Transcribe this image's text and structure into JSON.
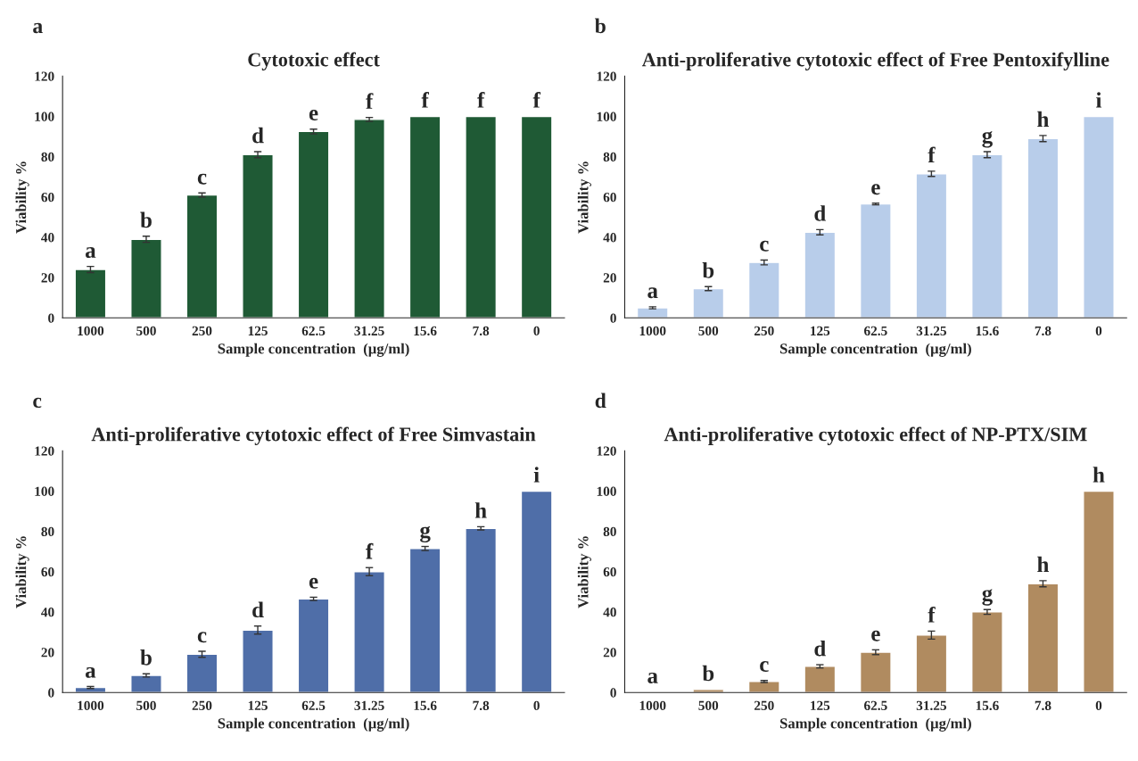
{
  "chart_data": [
    {
      "type": "bar",
      "title": "Cytotoxic effect",
      "xlabel": "Sample concentration  (µg/ml)",
      "ylabel": "Viability %",
      "categories": [
        "1000",
        "500",
        "250",
        "125",
        "62.5",
        "31.25",
        "15.6",
        "7.8",
        "0"
      ],
      "values": [
        24,
        39,
        61,
        81,
        92.5,
        98.5,
        100,
        100,
        100
      ],
      "errors": [
        1.5,
        1.5,
        1,
        1.5,
        1.2,
        1,
        null,
        null,
        null
      ],
      "value_labels": [
        "a",
        "b",
        "c",
        "d",
        "e",
        "f",
        "f",
        "f",
        "f"
      ],
      "color": "#1f5a35",
      "ylim": [
        0,
        120
      ],
      "yticks": [
        0,
        20,
        40,
        60,
        80,
        100,
        120
      ],
      "annotations": [
        "a"
      ]
    },
    {
      "type": "bar",
      "title": "Anti-proliferative cytotoxic effect of Free Pentoxifylline",
      "xlabel": "Sample concentration  (µg/ml)",
      "ylabel": "Viability %",
      "categories": [
        "1000",
        "500",
        "250",
        "125",
        "62.5",
        "31.25",
        "15.6",
        "7.8",
        "0"
      ],
      "values": [
        5,
        14.5,
        27.5,
        42.5,
        56.5,
        71.5,
        81,
        89,
        100
      ],
      "errors": [
        0.5,
        1,
        1.2,
        1.3,
        0.4,
        1.3,
        1.5,
        1.5,
        null
      ],
      "value_labels": [
        "a",
        "b",
        "c",
        "d",
        "e",
        "f",
        "g",
        "h",
        "i"
      ],
      "color": "#b8cdea",
      "ylim": [
        0,
        120
      ],
      "yticks": [
        0,
        20,
        40,
        60,
        80,
        100,
        120
      ],
      "annotations": [
        "b"
      ]
    },
    {
      "type": "bar",
      "title": "Anti-proliferative cytotoxic effect of Free Simvastain",
      "xlabel": "Sample concentration  (µg/ml)",
      "ylabel": "Viability %",
      "categories": [
        "1000",
        "500",
        "250",
        "125",
        "62.5",
        "31.25",
        "15.6",
        "7.8",
        "0"
      ],
      "values": [
        2.5,
        8.5,
        19,
        31,
        46.5,
        60,
        71.5,
        81.5,
        100
      ],
      "errors": [
        0.5,
        0.8,
        1.5,
        2,
        0.8,
        2,
        1,
        0.8,
        null
      ],
      "value_labels": [
        "a",
        "b",
        "c",
        "d",
        "e",
        "f",
        "g",
        "h",
        "i"
      ],
      "color": "#4f6ea8",
      "ylim": [
        0,
        120
      ],
      "yticks": [
        0,
        20,
        40,
        60,
        80,
        100,
        120
      ],
      "annotations": [
        "c"
      ]
    },
    {
      "type": "bar",
      "title": "Anti-proliferative cytotoxic effect of NP-PTX/SIM",
      "xlabel": "Sample concentration  (µg/ml)",
      "ylabel": "Viability %",
      "categories": [
        "1000",
        "500",
        "250",
        "125",
        "62.5",
        "31.25",
        "15.6",
        "7.8",
        "0"
      ],
      "values": [
        0.3,
        1.5,
        5.5,
        13,
        20,
        28.5,
        40,
        54,
        100
      ],
      "errors": [
        null,
        null,
        0.5,
        0.8,
        1.2,
        2,
        1.2,
        1.5,
        null
      ],
      "value_labels": [
        "a",
        "b",
        "c",
        "d",
        "e",
        "f",
        "g",
        "h",
        "h"
      ],
      "color": "#b08b60",
      "ylim": [
        0,
        120
      ],
      "yticks": [
        0,
        20,
        40,
        60,
        80,
        100,
        120
      ],
      "annotations": [
        "d"
      ]
    }
  ]
}
